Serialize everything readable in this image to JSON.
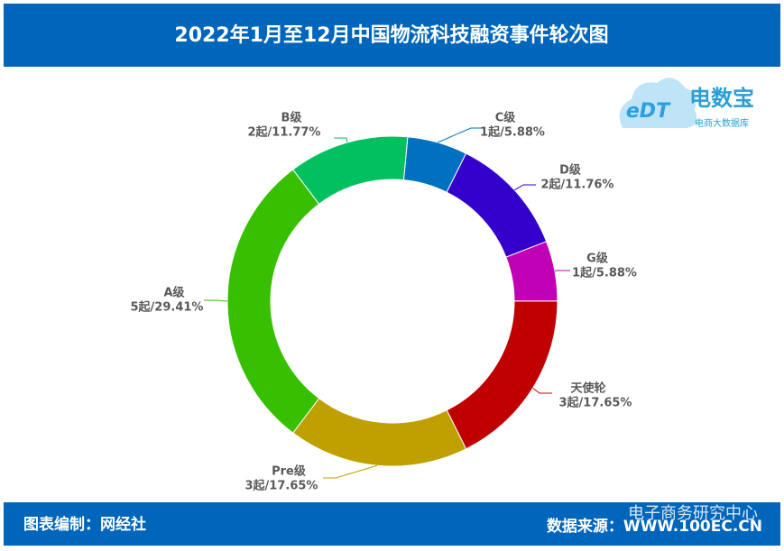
{
  "chart_data": {
    "type": "donut",
    "title": "2022年1月至12月中国物流科技融资事件轮次图",
    "categories": [
      "C级",
      "D级",
      "G级",
      "天使轮",
      "Pre级",
      "A级",
      "B级"
    ],
    "values": [
      5.88,
      11.76,
      5.88,
      17.65,
      17.65,
      29.41,
      11.77
    ],
    "value_labels": [
      "1起/5.88%",
      "2起/11.76%",
      "1起/5.88%",
      "3起/17.65%",
      "3起/17.65%",
      "5起/29.41%",
      "2起/11.77%"
    ],
    "colors": [
      "#0070c0",
      "#3300cc",
      "#c000b4",
      "#c00000",
      "#c0a000",
      "#36c000",
      "#00c060"
    ]
  },
  "logo": {
    "mark": "eDT",
    "name": "电数宝",
    "tagline": "电商大数据库"
  },
  "footer": {
    "left": "图表编制：网经社",
    "right": "数据来源：WWW.100EC.CN",
    "watermark": "电子商务研究中心"
  }
}
